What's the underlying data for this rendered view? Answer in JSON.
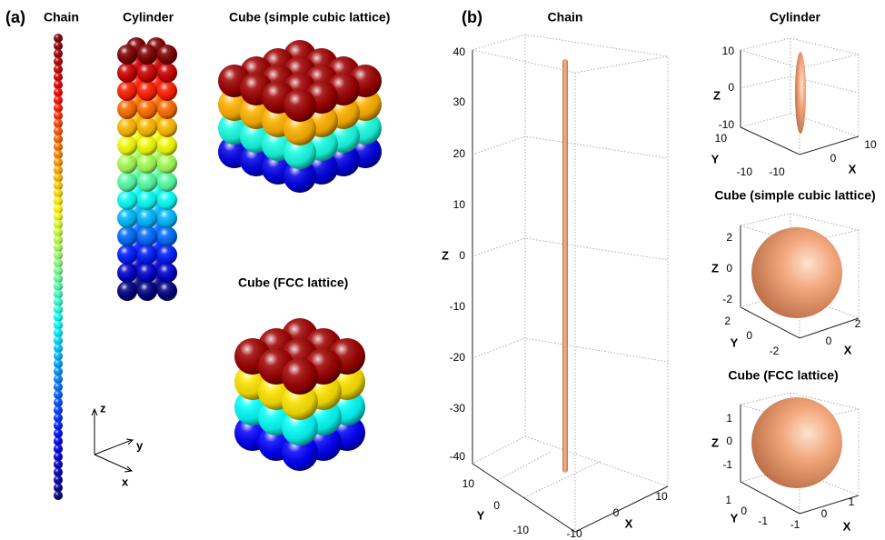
{
  "panel_a": {
    "label": "(a)",
    "titles": [
      "Chain",
      "Cylinder",
      "Cube (simple cubic lattice)",
      "Cube (FCC lattice)"
    ],
    "axes": [
      "z",
      "y",
      "x"
    ]
  },
  "panel_b": {
    "label": "(b)",
    "plots": [
      {
        "title": "Chain",
        "z_label": "Z",
        "y_label": "Y",
        "x_label": "X",
        "z_ticks": [
          40,
          30,
          20,
          10,
          0,
          -10,
          -20,
          -30,
          -40
        ],
        "y_ticks": [
          10,
          0,
          -10
        ],
        "x_ticks": [
          -10,
          0,
          10
        ]
      },
      {
        "title": "Cylinder",
        "z_label": "Z",
        "y_label": "Y",
        "x_label": "X",
        "z_ticks": [
          10,
          0,
          -10
        ],
        "y_ticks": [
          10,
          -10
        ],
        "x_ticks": [
          -10,
          0,
          10
        ]
      },
      {
        "title": "Cube (simple cubic lattice)",
        "z_label": "Z",
        "y_label": "Y",
        "x_label": "X",
        "z_ticks": [
          2,
          0,
          -2
        ],
        "y_ticks": [
          2,
          0
        ],
        "x_ticks": [
          -2,
          0,
          2
        ]
      },
      {
        "title": "Cube (FCC lattice)",
        "z_label": "Z",
        "y_label": "Y",
        "x_label": "X",
        "z_ticks": [
          1,
          0,
          -1
        ],
        "y_ticks": [
          1,
          0,
          -1
        ],
        "x_ticks": [
          -1,
          0,
          1
        ]
      }
    ]
  }
}
